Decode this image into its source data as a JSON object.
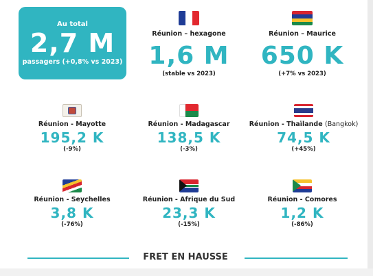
{
  "total": {
    "label": "Au total",
    "value": "2,7 M",
    "sub": "passagers (+0,8% vs 2023)"
  },
  "routes": [
    {
      "route": "Réunion – hexagone",
      "value": "1,6 M",
      "delta": "(stable vs 2023)",
      "flag": "france-flag"
    },
    {
      "route": "Réunion – Maurice",
      "value": "650 K",
      "delta": "(+7% vs 2023)",
      "flag": "mauritius-flag"
    },
    {
      "route": "Réunion - Mayotte",
      "value": "195,2 K",
      "delta": "(-9%)",
      "flag": "mayotte-flag"
    },
    {
      "route": "Réunion - Madagascar",
      "value": "138,5 K",
      "delta": "(-3%)",
      "flag": "madagascar-flag"
    },
    {
      "route": "Réunion - Thaïlande",
      "route_paren": "(Bangkok)",
      "value": "74,5 K",
      "delta": "(+45%)",
      "flag": "thailand-flag"
    },
    {
      "route": "Réunion - Seychelles",
      "value": "3,8 K",
      "delta": "(-76%)",
      "flag": "seychelles-flag"
    },
    {
      "route": "Réunion - Afrique du Sud",
      "value": "23,3 K",
      "delta": "(-15%)",
      "flag": "south-africa-flag"
    },
    {
      "route": "Réunion - Comores",
      "value": "1,2 K",
      "delta": "(-86%)",
      "flag": "comoros-flag"
    }
  ],
  "section": {
    "title": "FRET EN HAUSSE"
  },
  "colors": {
    "accent": "#30b5c1",
    "text": "#222222"
  }
}
